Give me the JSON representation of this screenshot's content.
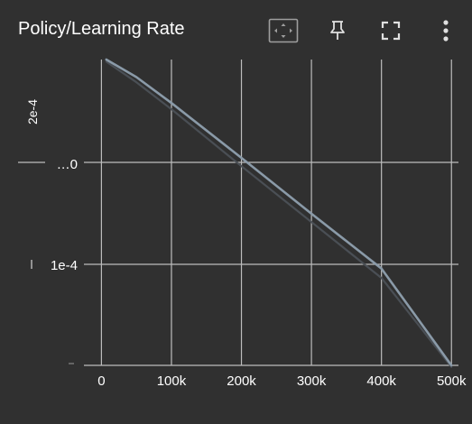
{
  "header": {
    "title": "Policy/Learning Rate",
    "icons": [
      "fit-domain-icon",
      "pin-icon",
      "fullscreen-icon",
      "more-vert-icon"
    ]
  },
  "colors": {
    "background": "#303030",
    "grid": "#bdbdbd",
    "text": "#ffffff",
    "series_main": "#8a9aa8",
    "series_shadow": "#4a4f55"
  },
  "chart_data": {
    "type": "line",
    "title": "",
    "xlabel": "",
    "ylabel": "",
    "x_ticks": [
      "0",
      "100k",
      "200k",
      "300k",
      "400k",
      "500k"
    ],
    "x_tick_values": [
      0,
      100000,
      200000,
      300000,
      400000,
      500000
    ],
    "y_tick_labels": [
      "2e-4",
      "…0",
      "1e-4"
    ],
    "xlim": [
      -25000,
      510000
    ],
    "ylim": [
      2.5e-06,
      0.000298
    ],
    "grid": true,
    "series": [
      {
        "x": [
          7000,
          50000,
          100000,
          200000,
          300000,
          400000,
          500000
        ],
        "y": [
          0.000298,
          0.000281,
          0.000256,
          0.000203,
          0.000149,
          9.6e-05,
          2.5e-06
        ]
      },
      {
        "x": [
          7000,
          50000,
          100000,
          200000,
          300000,
          400000,
          500000
        ],
        "y": [
          0.000296,
          0.000276,
          0.00025,
          0.000195,
          0.000141,
          8.7e-05,
          1e-06
        ]
      }
    ]
  }
}
